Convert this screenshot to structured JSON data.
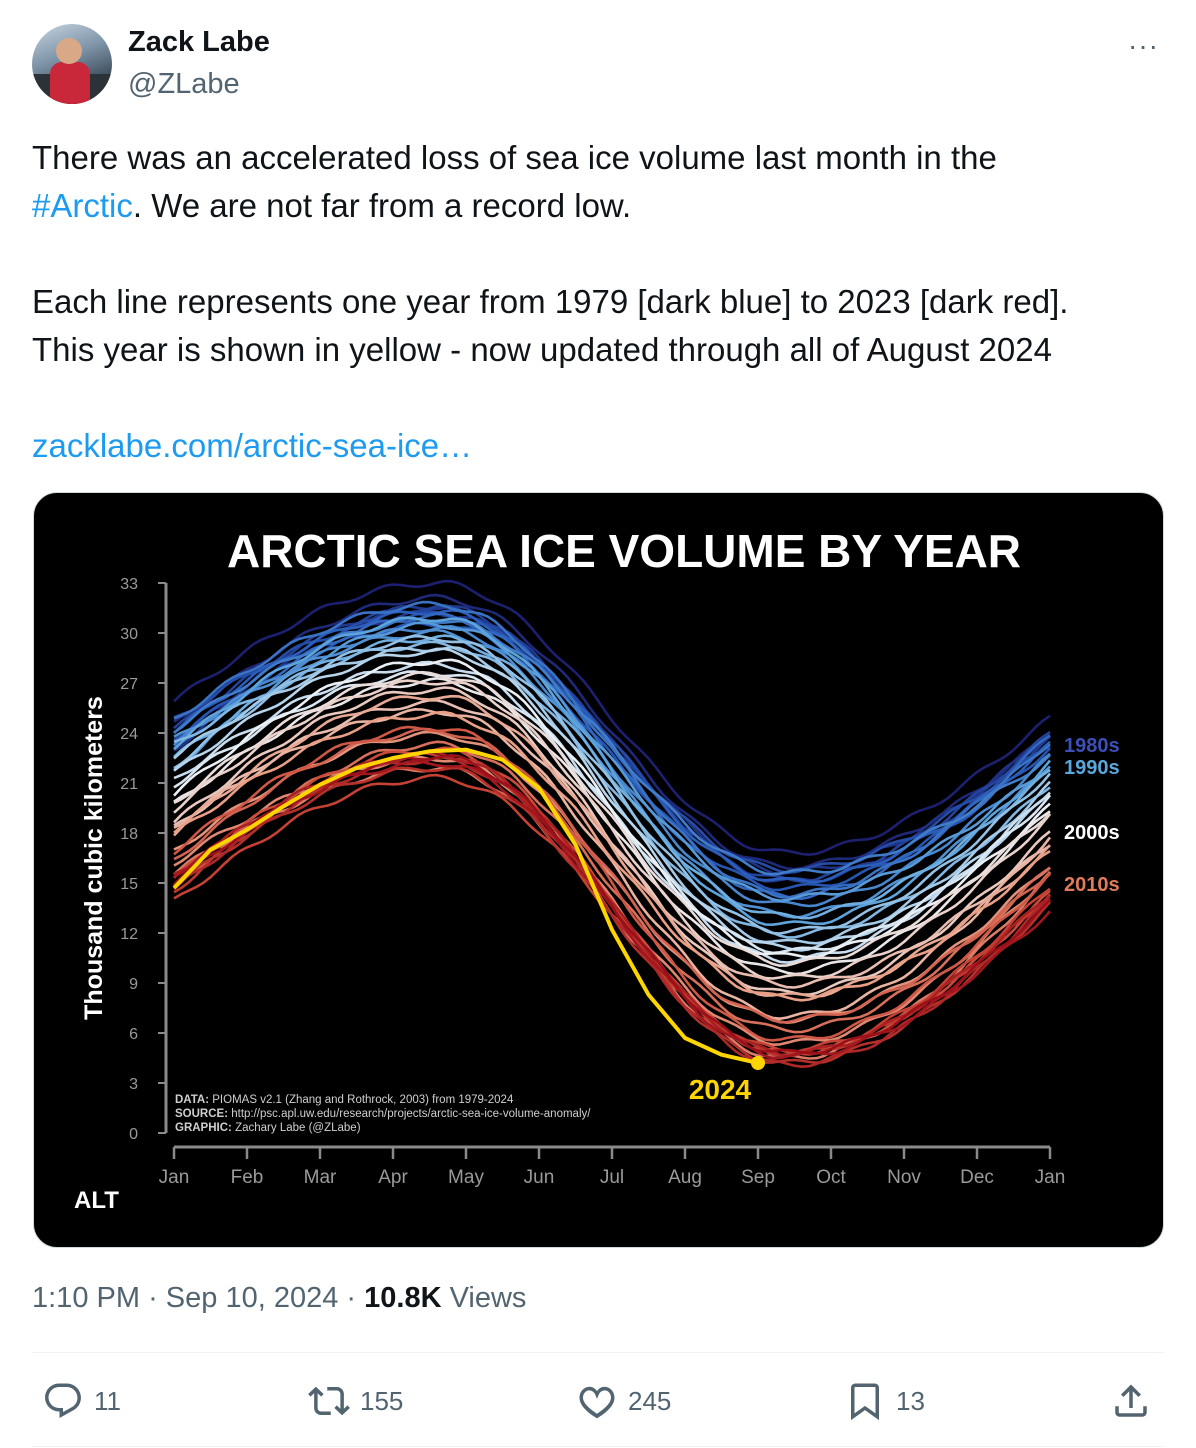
{
  "author": {
    "name": "Zack Labe",
    "handle": "@ZLabe"
  },
  "more_icon": "···",
  "tweet": {
    "line1a": "There was an accelerated loss of sea ice volume last month in the",
    "hashtag": "#Arctic",
    "line2b": ". We are not far from a record low.",
    "line3": "Each line represents one year from 1979 [dark blue] to 2023 [dark red].",
    "line4": "This year is shown in yellow - now updated through all of August 2024",
    "link": "zacklabe.com/arctic-sea-ice…"
  },
  "media": {
    "alt": "ALT"
  },
  "chart_data": {
    "type": "line",
    "title": "ARCTIC SEA ICE VOLUME BY YEAR",
    "ylabel": "Thousand cubic kilometers",
    "yticks": [
      "0",
      "3",
      "6",
      "9",
      "12",
      "15",
      "18",
      "21",
      "24",
      "27",
      "30",
      "33"
    ],
    "ylim": [
      0,
      33
    ],
    "xticks": [
      "Jan",
      "Feb",
      "Mar",
      "Apr",
      "May",
      "Jun",
      "Jul",
      "Aug",
      "Sep",
      "Oct",
      "Nov",
      "Dec",
      "Jan"
    ],
    "legend": [
      "1980s",
      "1990s",
      "2000s",
      "2010s"
    ],
    "legend_colors": [
      "#3b4fb8",
      "#5aa7de",
      "#ffffff",
      "#e07a5a"
    ],
    "annotation": "2024",
    "highlight_color": "#ffd500",
    "credits": {
      "data_label": "DATA:",
      "data": "PIOMAS v2.1 (Zhang and Rothrock, 2003) from 1979-2024",
      "source_label": "SOURCE:",
      "source": "http://psc.apl.uw.edu/research/projects/arctic-sea-ice-volume-anomaly/",
      "graphic_label": "GRAPHIC:",
      "graphic": "Zachary Labe (@ZLabe)"
    },
    "series_first_year": 1979,
    "series_last_year": 2023,
    "series_jan_start": [
      25.9,
      24.5,
      23.0,
      23.4,
      24.2,
      24.8,
      23.7,
      24.1,
      22.9,
      24.8,
      24.2,
      23.3,
      23.6,
      21.8,
      23.2,
      22.5,
      23.3,
      22.0,
      22.6,
      21.6,
      21.2,
      20.9,
      20.3,
      19.7,
      19.8,
      19.4,
      18.6,
      18.3,
      18.4,
      18.0,
      17.9,
      16.9,
      16.2,
      15.6,
      14.7,
      16.4,
      16.9,
      15.3,
      13.9,
      14.5,
      14.8,
      14.6,
      15.4,
      15.5,
      15.0
    ],
    "series_peak_apr": [
      33.0,
      32.1,
      31.2,
      31.6,
      31.5,
      31.1,
      30.5,
      31.3,
      31.0,
      31.7,
      30.8,
      30.3,
      30.0,
      30.5,
      30.9,
      29.7,
      29.3,
      29.7,
      29.1,
      28.9,
      28.1,
      27.6,
      28.3,
      27.1,
      27.5,
      27.1,
      26.6,
      25.8,
      25.3,
      26.2,
      25.1,
      23.9,
      22.5,
      21.9,
      23.3,
      24.1,
      24.3,
      23.0,
      21.3,
      22.7,
      21.9,
      22.4,
      22.7,
      22.2,
      22.6
    ],
    "series_sep_min": [
      16.8,
      16.0,
      15.7,
      15.1,
      15.2,
      15.8,
      14.7,
      15.1,
      14.2,
      14.3,
      15.6,
      13.7,
      13.1,
      14.1,
      12.5,
      13.0,
      11.9,
      12.1,
      11.4,
      11.1,
      10.4,
      10.9,
      10.6,
      9.7,
      10.2,
      9.3,
      8.4,
      8.9,
      7.0,
      8.2,
      8.1,
      6.8,
      5.4,
      4.5,
      6.2,
      6.8,
      5.6,
      4.8,
      5.0,
      4.8,
      4.2,
      4.1,
      4.8,
      4.6,
      4.8
    ],
    "series_dec_end": [
      24.9,
      23.9,
      23.9,
      23.7,
      24.0,
      23.4,
      23.1,
      23.3,
      23.9,
      23.5,
      22.6,
      22.6,
      21.9,
      22.1,
      22.2,
      21.7,
      20.9,
      21.6,
      20.9,
      20.3,
      20.6,
      20.2,
      19.6,
      19.4,
      19.3,
      19.0,
      18.0,
      17.4,
      17.8,
      17.1,
      16.9,
      16.1,
      15.6,
      15.5,
      16.0,
      15.7,
      15.5,
      14.4,
      14.8,
      14.4,
      13.7,
      14.0,
      14.4,
      13.3,
      13.8
    ],
    "highlight_series": {
      "name": "2024",
      "x_months": [
        0,
        0.5,
        1,
        1.5,
        2,
        2.5,
        3,
        3.5,
        4,
        4.5,
        5,
        5.5,
        6,
        6.5,
        7,
        7.5,
        8
      ],
      "values": [
        14.7,
        17.0,
        18.2,
        19.6,
        20.9,
        21.9,
        22.5,
        22.9,
        23.0,
        22.4,
        20.7,
        17.3,
        12.2,
        8.3,
        5.7,
        4.7,
        4.2
      ]
    }
  },
  "footer": {
    "time": "1:10 PM",
    "sep": "·",
    "date": "Sep 10, 2024",
    "sep2": "·",
    "views_count": "10.8K",
    "views_label": "Views"
  },
  "actions": {
    "replies": "11",
    "reposts": "155",
    "likes": "245",
    "bookmarks": "13"
  }
}
